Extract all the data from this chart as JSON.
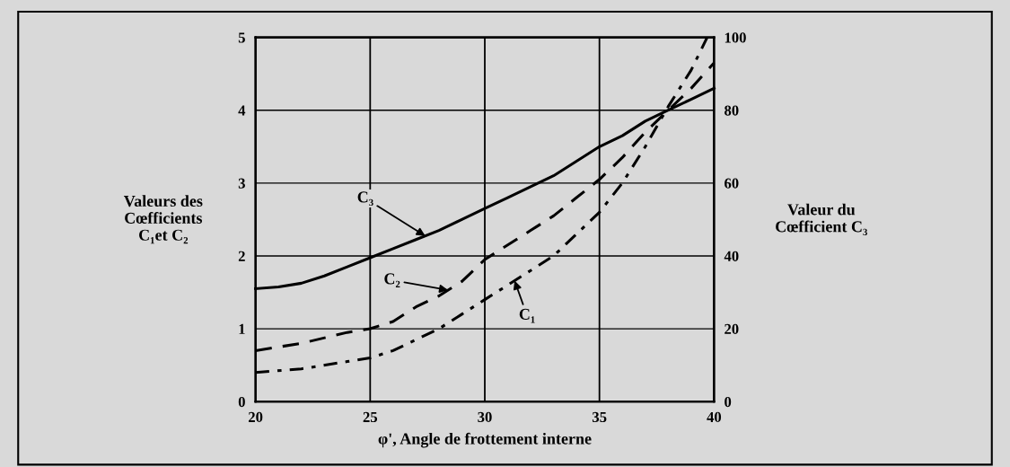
{
  "chart_data": {
    "type": "line",
    "xlabel": "φ', Angle de frottement interne",
    "ylabel": "Valeurs des\nCœfficients\nC₁et C₂",
    "y2label": "Valeur du\nCœfficient C₃",
    "xlim": [
      20,
      40
    ],
    "xticks": [
      20,
      25,
      30,
      35,
      40
    ],
    "ylim": [
      0,
      5
    ],
    "yticks": [
      0,
      1,
      2,
      3,
      4,
      5
    ],
    "y2lim": [
      0,
      100
    ],
    "y2ticks": [
      0,
      20,
      40,
      60,
      80,
      100
    ],
    "grid": true,
    "legend": false,
    "marker": "none",
    "series": [
      {
        "color": "#000000",
        "axis": "y2",
        "line_style": "solid",
        "x": [
          20,
          21,
          22,
          23,
          24,
          25,
          26,
          27,
          28,
          29,
          30,
          31,
          32,
          33,
          34,
          35,
          36,
          37,
          38,
          39,
          40
        ],
        "values": [
          31,
          31.5,
          32.5,
          34.5,
          37,
          39.5,
          42,
          44.5,
          47,
          50,
          53,
          56,
          59,
          62,
          66,
          70,
          73,
          77,
          80,
          83,
          86
        ]
      },
      {
        "color": "#000000",
        "line_style": "dashed",
        "x": [
          20,
          22,
          24,
          25,
          26,
          27,
          28,
          29,
          30,
          31,
          32,
          33,
          34,
          35,
          36,
          37,
          38,
          39,
          40
        ],
        "values": [
          0.7,
          0.8,
          0.95,
          1.0,
          1.1,
          1.3,
          1.45,
          1.65,
          1.95,
          2.15,
          2.35,
          2.55,
          2.8,
          3.05,
          3.35,
          3.7,
          4.0,
          4.3,
          4.65
        ]
      },
      {
        "color": "#000000",
        "line_style": "dotted",
        "x": [
          20,
          22,
          24,
          25,
          26,
          27,
          28,
          29,
          30,
          31,
          32,
          33,
          34,
          35,
          36,
          37,
          38,
          39,
          39.7
        ],
        "values": [
          0.4,
          0.45,
          0.55,
          0.6,
          0.7,
          0.85,
          1.0,
          1.2,
          1.4,
          1.6,
          1.8,
          2.0,
          2.3,
          2.6,
          3.0,
          3.5,
          4.05,
          4.55,
          5.0
        ]
      }
    ],
    "annotations": [
      {
        "text": "C₃",
        "x": 27.4,
        "y": 2.275
      },
      {
        "text": "C₂",
        "x": 28.4,
        "y": 1.53
      },
      {
        "text": "C₁",
        "x": 31.3,
        "y": 1.66
      }
    ]
  }
}
